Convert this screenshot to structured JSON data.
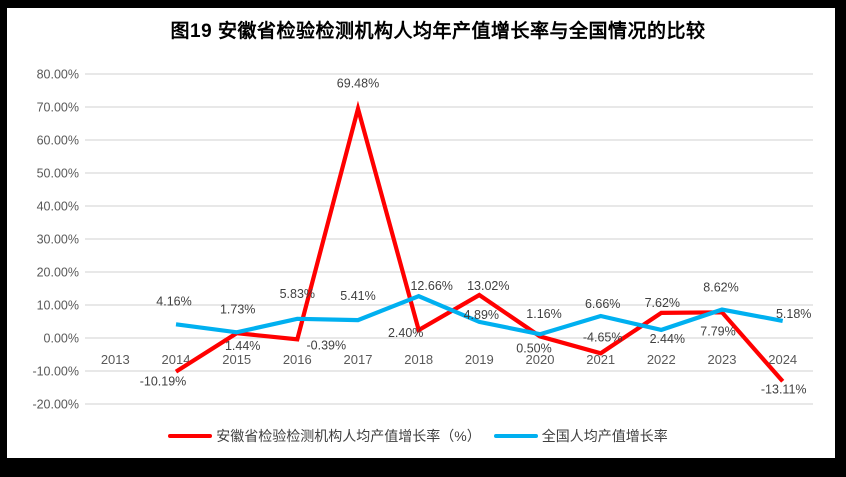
{
  "chart_data": {
    "type": "line",
    "title": "图19 安徽省检验检测机构人均年产值增长率与全国情况的比较",
    "categories": [
      "2013",
      "2014",
      "2015",
      "2016",
      "2017",
      "2018",
      "2019",
      "2020",
      "2021",
      "2022",
      "2023",
      "2024"
    ],
    "series": [
      {
        "name": "安徽省检验检测机构人均产值增长率（%）",
        "color": "#FF0000",
        "values": [
          null,
          -10.19,
          1.44,
          -0.39,
          69.48,
          2.4,
          13.02,
          0.5,
          -4.65,
          7.62,
          7.79,
          -13.11
        ],
        "labels": [
          null,
          "-10.19%",
          "1.44%",
          "-0.39%",
          "69.48%",
          "2.40%",
          "13.02%",
          "0.50%",
          "-4.65%",
          "7.62%",
          "7.79%",
          "-13.11%"
        ]
      },
      {
        "name": "全国人均产值增长率",
        "color": "#00B0F0",
        "values": [
          null,
          4.16,
          1.73,
          5.83,
          5.41,
          12.66,
          4.89,
          1.16,
          6.66,
          2.44,
          8.62,
          5.18
        ],
        "labels": [
          null,
          "4.16%",
          "1.73%",
          "5.83%",
          "5.41%",
          "12.66%",
          "4.89%",
          "1.16%",
          "6.66%",
          "2.44%",
          "8.62%",
          "5.18%"
        ]
      }
    ],
    "ylim": [
      -20,
      80
    ],
    "y_tick_values": [
      -20,
      -10,
      0,
      10,
      20,
      30,
      40,
      50,
      60,
      70,
      80
    ],
    "y_tick_labels": [
      "-20.00%",
      "-10.00%",
      "0.00%",
      "10.00%",
      "20.00%",
      "30.00%",
      "40.00%",
      "50.00%",
      "60.00%",
      "70.00%",
      "80.00%"
    ],
    "grid": true,
    "data_labels": true,
    "legend_position": "bottom",
    "colors": {
      "grid": "#D9D9D9",
      "axis_text": "#595959",
      "data_label_text": "#404040",
      "background": "#FFFFFF",
      "frame": "#000000"
    }
  }
}
